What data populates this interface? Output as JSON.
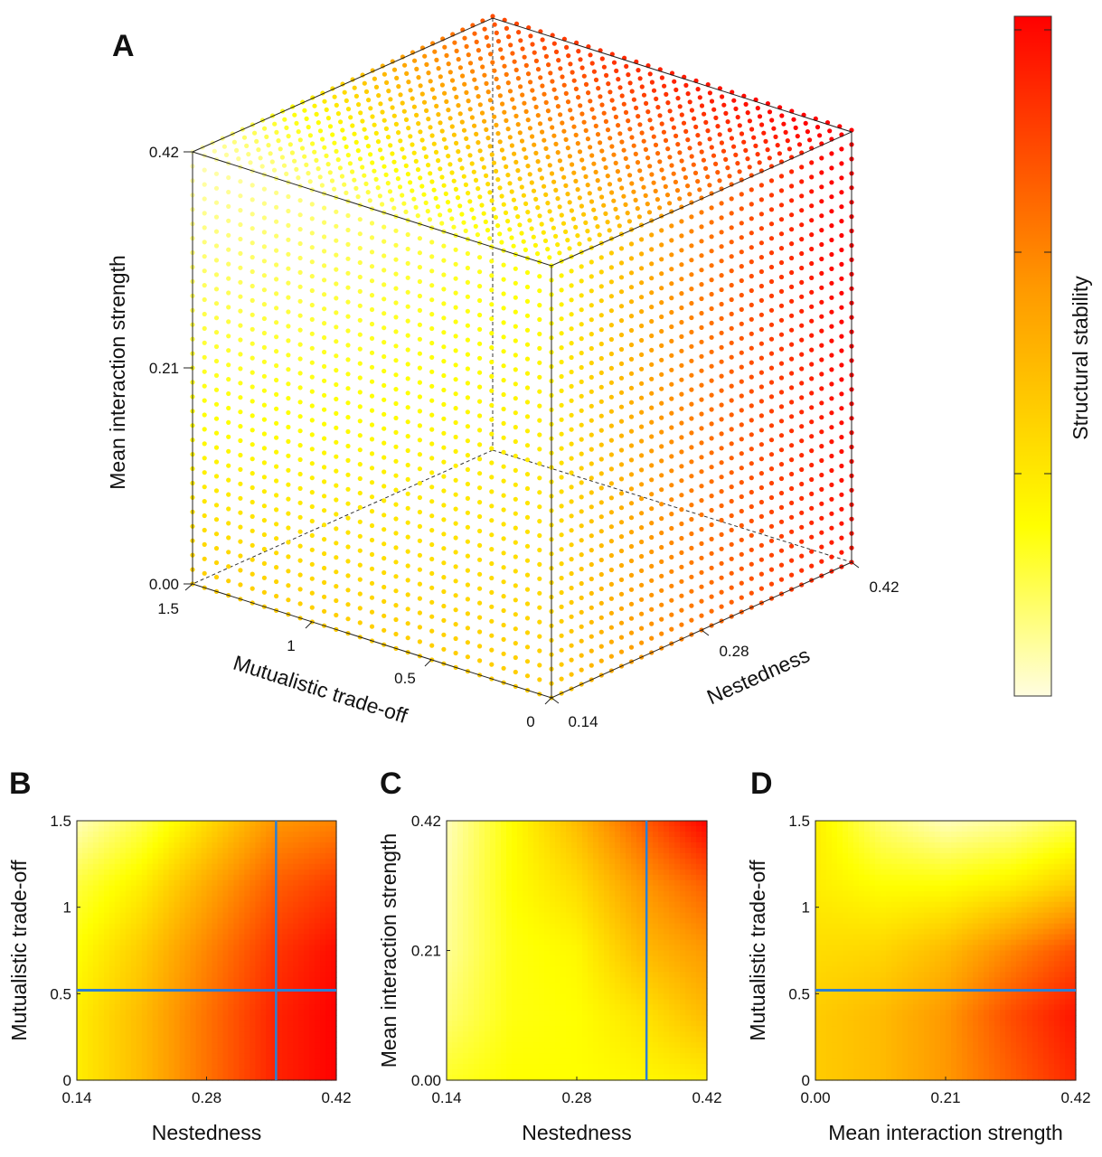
{
  "colormap": {
    "low": "#fffde0",
    "mid1": "#ffff00",
    "mid2": "#ff9900",
    "high": "#ff0000",
    "marker_line": "#2a7fd4"
  },
  "chart_data": [
    {
      "panel": "A",
      "type": "scatter",
      "projection": "3d",
      "axes": {
        "x": {
          "label": "Mutualistic trade-off",
          "range": [
            0,
            1.5
          ],
          "ticks": [
            "1.5",
            "1",
            "0.5",
            "0"
          ]
        },
        "y": {
          "label": "Nestedness",
          "range": [
            0.14,
            0.42
          ],
          "ticks": [
            "0.14",
            "0.28",
            "0.42"
          ]
        },
        "z": {
          "label": "Mean interaction strength",
          "range": [
            0.0,
            0.42
          ],
          "ticks": [
            "0.00",
            "0.21",
            "0.42"
          ]
        }
      },
      "color_by": "Structural stability",
      "colorbar": {
        "label": "Structural stability",
        "orientation": "vertical",
        "placement": "right"
      }
    },
    {
      "panel": "B",
      "type": "heatmap",
      "xlabel": "Nestedness",
      "ylabel": "Mutualistic trade-off",
      "xlim": [
        0.14,
        0.42
      ],
      "ylim": [
        0,
        1.5
      ],
      "xticks": [
        "0.14",
        "0.28",
        "0.42"
      ],
      "yticks": [
        "0",
        "0.5",
        "1",
        "1.5"
      ],
      "x": [
        0.14,
        0.21,
        0.28,
        0.35,
        0.42
      ],
      "y": [
        0,
        0.375,
        0.75,
        1.125,
        1.5
      ],
      "relative_stability": [
        [
          0.35,
          0.5,
          0.7,
          0.9,
          1.0
        ],
        [
          0.35,
          0.5,
          0.7,
          0.9,
          1.0
        ],
        [
          0.3,
          0.45,
          0.65,
          0.85,
          0.97
        ],
        [
          0.22,
          0.35,
          0.55,
          0.75,
          0.85
        ],
        [
          0.05,
          0.2,
          0.4,
          0.6,
          0.65
        ]
      ],
      "reference_lines": {
        "x": 0.355,
        "y": 0.52
      }
    },
    {
      "panel": "C",
      "type": "heatmap",
      "xlabel": "Nestedness",
      "ylabel": "Mean interaction strength",
      "xlim": [
        0.14,
        0.42
      ],
      "ylim": [
        0.0,
        0.42
      ],
      "xticks": [
        "0.14",
        "0.28",
        "0.42"
      ],
      "yticks": [
        "0.00",
        "0.21",
        "0.42"
      ],
      "x": [
        0.14,
        0.21,
        0.28,
        0.35,
        0.42
      ],
      "y": [
        0,
        0.105,
        0.21,
        0.315,
        0.42
      ],
      "relative_stability": [
        [
          0.25,
          0.3,
          0.3,
          0.32,
          0.35
        ],
        [
          0.15,
          0.28,
          0.3,
          0.38,
          0.5
        ],
        [
          0.1,
          0.28,
          0.32,
          0.5,
          0.6
        ],
        [
          0.08,
          0.3,
          0.4,
          0.6,
          0.75
        ],
        [
          0.05,
          0.3,
          0.5,
          0.75,
          1.0
        ]
      ],
      "reference_lines": {
        "x": 0.355
      }
    },
    {
      "panel": "D",
      "type": "heatmap",
      "xlabel": "Mean interaction strength",
      "ylabel": "Mutualistic trade-off",
      "xlim": [
        0.0,
        0.42
      ],
      "ylim": [
        0,
        1.5
      ],
      "xticks": [
        "0.00",
        "0.21",
        "0.42"
      ],
      "yticks": [
        "0",
        "0.5",
        "1",
        "1.5"
      ],
      "x": [
        0,
        0.105,
        0.21,
        0.315,
        0.42
      ],
      "y": [
        0,
        0.375,
        0.75,
        1.125,
        1.5
      ],
      "relative_stability": [
        [
          0.45,
          0.5,
          0.6,
          0.75,
          0.9
        ],
        [
          0.45,
          0.5,
          0.6,
          0.8,
          0.95
        ],
        [
          0.4,
          0.42,
          0.5,
          0.65,
          0.8
        ],
        [
          0.35,
          0.3,
          0.3,
          0.35,
          0.45
        ],
        [
          0.35,
          0.15,
          0.05,
          0.1,
          0.2
        ]
      ],
      "reference_lines": {
        "y": 0.52
      }
    }
  ],
  "panel_labels": [
    "A",
    "B",
    "C",
    "D"
  ]
}
